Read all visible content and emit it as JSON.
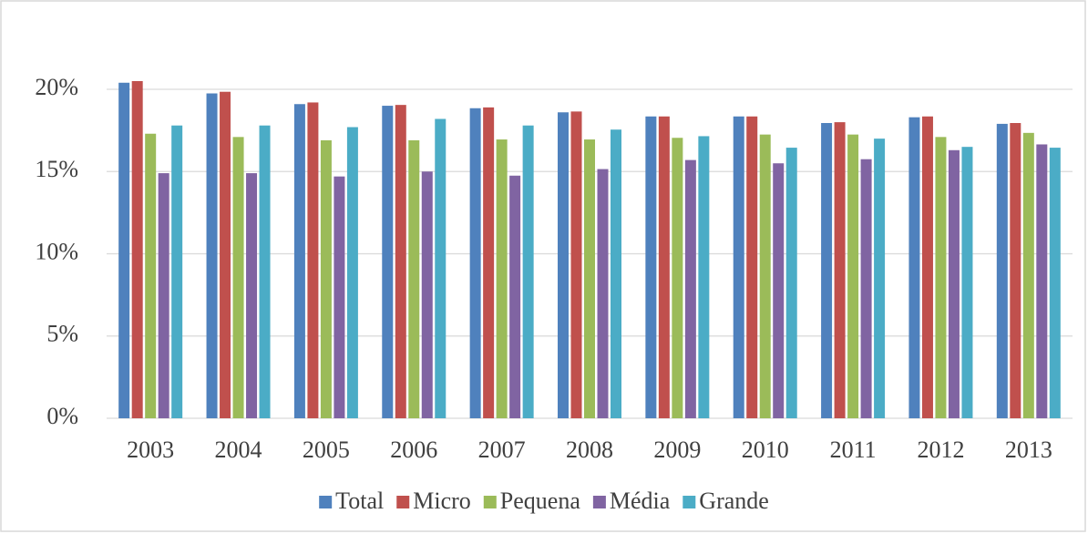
{
  "chart_data": {
    "type": "bar",
    "categories": [
      "2003",
      "2004",
      "2005",
      "2006",
      "2007",
      "2008",
      "2009",
      "2010",
      "2011",
      "2012",
      "2013"
    ],
    "series": [
      {
        "name": "Total",
        "color": "#4f81bd",
        "values": [
          20.4,
          19.75,
          19.1,
          19.0,
          18.85,
          18.6,
          18.35,
          18.35,
          17.95,
          18.3,
          17.9
        ]
      },
      {
        "name": "Micro",
        "color": "#c0504d",
        "values": [
          20.5,
          19.85,
          19.2,
          19.05,
          18.9,
          18.65,
          18.35,
          18.35,
          18.0,
          18.35,
          17.95
        ]
      },
      {
        "name": "Pequena",
        "color": "#9bbb59",
        "values": [
          17.3,
          17.1,
          16.9,
          16.9,
          16.95,
          16.95,
          17.05,
          17.25,
          17.25,
          17.1,
          17.35
        ]
      },
      {
        "name": "Média",
        "color": "#8064a2",
        "values": [
          14.9,
          14.9,
          14.7,
          15.0,
          14.75,
          15.15,
          15.7,
          15.5,
          15.75,
          16.3,
          16.65
        ]
      },
      {
        "name": "Grande",
        "color": "#4bacc6",
        "values": [
          17.8,
          17.8,
          17.7,
          18.2,
          17.8,
          17.55,
          17.15,
          16.45,
          17.0,
          16.5,
          16.45
        ]
      }
    ],
    "ylim": [
      0,
      20
    ],
    "yticks": [
      {
        "value": 0,
        "label": "0%"
      },
      {
        "value": 5,
        "label": "5%"
      },
      {
        "value": 10,
        "label": "10%"
      },
      {
        "value": 15,
        "label": "15%"
      },
      {
        "value": 20,
        "label": "20%"
      }
    ],
    "grid": true,
    "legend": "bottom"
  }
}
